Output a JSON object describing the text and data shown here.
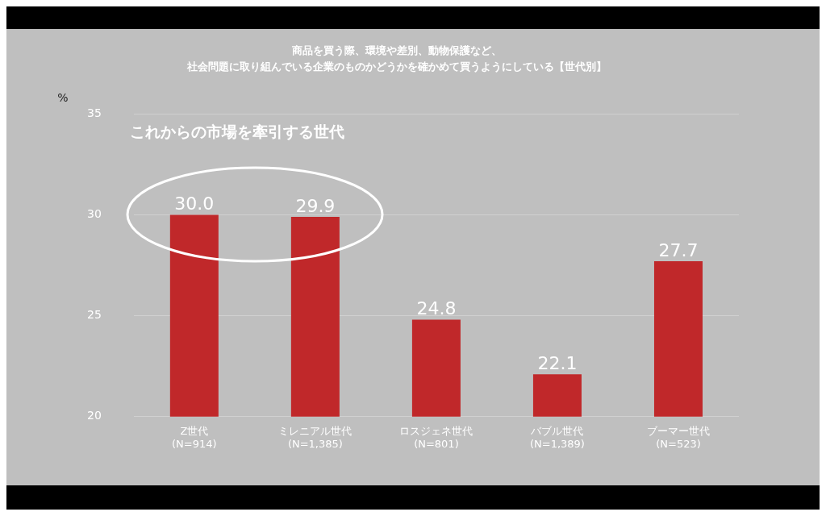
{
  "chart_data": {
    "type": "bar",
    "title": "商品を買う際、環境や差別、動物保護など、",
    "subtitle": "社会問題に取り組んでいる企業のものかどうかを確かめて買うようにしている【世代別】",
    "ylabel": "%",
    "categories": [
      "Z世代\n(N=914)",
      "ミレニアル世代\n(N=1,385)",
      "ロスジェネ世代\n(N=801)",
      "バブル世代\n(N=1,389)",
      "ブーマー世代\n(N=523)"
    ],
    "values": [
      30.0,
      29.9,
      24.8,
      22.1,
      27.7
    ],
    "color": "#c0282a",
    "ylim": [
      20,
      35
    ],
    "yticks": [
      20,
      25,
      30,
      35
    ],
    "grid": "y",
    "value_labels": [
      "30.0",
      "29.9",
      "24.8",
      "22.1",
      "27.7"
    ],
    "legend": false,
    "annotations": [
      "これからの市場を牽引する世代"
    ]
  }
}
